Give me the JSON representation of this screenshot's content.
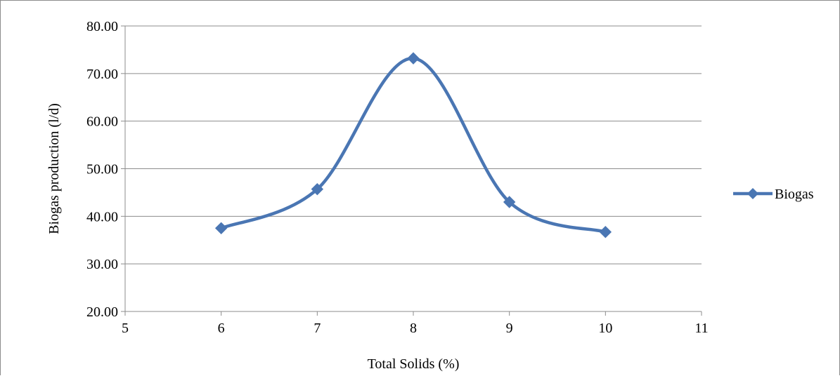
{
  "chart_data": {
    "type": "line",
    "title": "",
    "xlabel": "Total Solids (%)",
    "ylabel": "Biogas production (l/d)",
    "xlim": [
      5,
      11
    ],
    "ylim": [
      20,
      80
    ],
    "x_ticks": [
      "5",
      "6",
      "7",
      "8",
      "9",
      "10",
      "11"
    ],
    "y_ticks": [
      "20.00",
      "30.00",
      "40.00",
      "50.00",
      "60.00",
      "70.00",
      "80.00"
    ],
    "grid": "horizontal",
    "smooth": true,
    "legend_position": "right",
    "series": [
      {
        "name": "Biogas",
        "color": "#4A76B3",
        "marker": "diamond",
        "x": [
          6,
          7,
          8,
          9,
          10
        ],
        "y": [
          37.5,
          45.7,
          73.2,
          43.0,
          36.7
        ]
      }
    ]
  }
}
